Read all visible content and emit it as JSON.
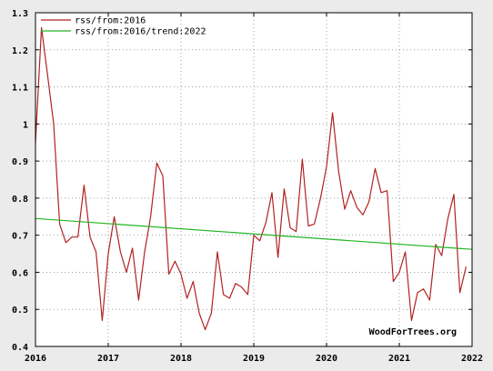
{
  "chart_data": {
    "type": "line",
    "title": "",
    "xlabel": "",
    "ylabel": "",
    "xlim": [
      2016,
      2022
    ],
    "ylim": [
      0.4,
      1.3
    ],
    "x_ticks": [
      "2016",
      "2017",
      "2018",
      "2019",
      "2020",
      "2021",
      "2022"
    ],
    "y_ticks": [
      "0.4",
      "0.5",
      "0.6",
      "0.7",
      "0.8",
      "0.9",
      "1",
      "1.1",
      "1.2",
      "1.3"
    ],
    "grid": true,
    "legend_position": "top-left",
    "watermark": "WoodForTrees.org",
    "series": [
      {
        "name": "rss/from:2016",
        "color": "#b22222",
        "x": [
          2016.0,
          2016.083,
          2016.167,
          2016.25,
          2016.333,
          2016.417,
          2016.5,
          2016.583,
          2016.667,
          2016.75,
          2016.833,
          2016.917,
          2017.0,
          2017.083,
          2017.167,
          2017.25,
          2017.333,
          2017.417,
          2017.5,
          2017.583,
          2017.667,
          2017.75,
          2017.833,
          2017.917,
          2018.0,
          2018.083,
          2018.167,
          2018.25,
          2018.333,
          2018.417,
          2018.5,
          2018.583,
          2018.667,
          2018.75,
          2018.833,
          2018.917,
          2019.0,
          2019.083,
          2019.167,
          2019.25,
          2019.333,
          2019.417,
          2019.5,
          2019.583,
          2019.667,
          2019.75,
          2019.833,
          2019.917,
          2020.0,
          2020.083,
          2020.167,
          2020.25,
          2020.333,
          2020.417,
          2020.5,
          2020.583,
          2020.667,
          2020.75,
          2020.833,
          2020.917,
          2021.0,
          2021.083,
          2021.167,
          2021.25,
          2021.333,
          2021.417,
          2021.5,
          2021.583,
          2021.667,
          2021.75,
          2021.833,
          2021.917
        ],
        "y": [
          0.95,
          1.26,
          1.13,
          1.0,
          0.73,
          0.68,
          0.695,
          0.695,
          0.835,
          0.695,
          0.655,
          0.47,
          0.65,
          0.75,
          0.655,
          0.6,
          0.665,
          0.525,
          0.655,
          0.75,
          0.895,
          0.86,
          0.595,
          0.63,
          0.595,
          0.53,
          0.575,
          0.49,
          0.445,
          0.49,
          0.655,
          0.54,
          0.53,
          0.57,
          0.56,
          0.54,
          0.7,
          0.685,
          0.735,
          0.815,
          0.64,
          0.825,
          0.72,
          0.71,
          0.905,
          0.725,
          0.73,
          0.8,
          0.885,
          1.03,
          0.87,
          0.77,
          0.82,
          0.775,
          0.755,
          0.79,
          0.88,
          0.815,
          0.82,
          0.575,
          0.6,
          0.655,
          0.47,
          0.545,
          0.555,
          0.525,
          0.675,
          0.645,
          0.745,
          0.81,
          0.545,
          0.615
        ]
      },
      {
        "name": "rss/from:2016/trend:2022",
        "color": "#22b522",
        "x": [
          2016.0,
          2022.0
        ],
        "y": [
          0.745,
          0.662
        ]
      }
    ]
  }
}
